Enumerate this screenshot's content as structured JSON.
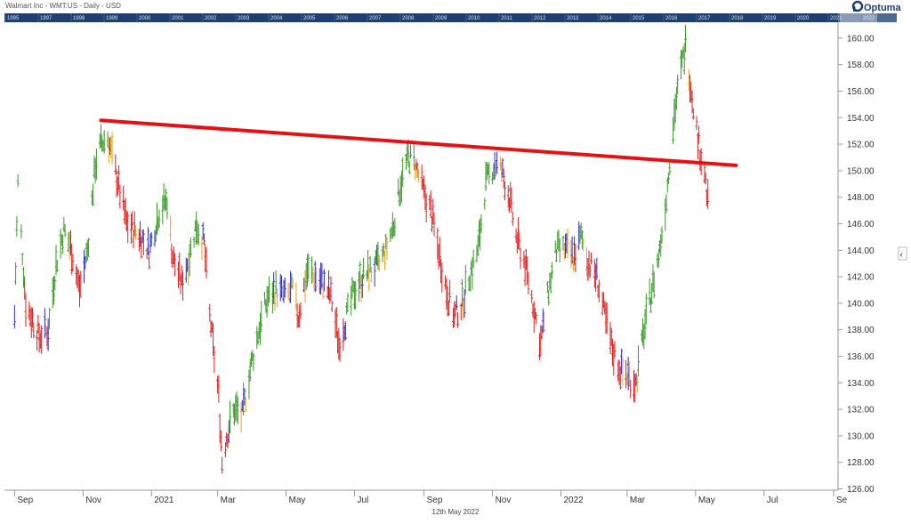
{
  "header": {
    "title": "Walmart Inc - WMT:US - Daily - USD",
    "brand": "Optuma",
    "date_label": "12th May 2022"
  },
  "overview_years": [
    "1995",
    "1997",
    "1998",
    "1999",
    "2000",
    "2001",
    "2002",
    "2003",
    "2004",
    "2005",
    "2006",
    "2007",
    "2008",
    "2009",
    "2010",
    "2011",
    "2012",
    "2013",
    "2014",
    "2015",
    "2016",
    "2017",
    "2018",
    "2019",
    "2020",
    "2021",
    "2022"
  ],
  "chart_data": {
    "type": "ohlc",
    "title": "Walmart Inc - WMT:US - Daily - USD",
    "x_tick_labels": [
      "Sep",
      "Nov",
      "2021",
      "Mar",
      "May",
      "Jul",
      "Sep",
      "Nov",
      "2022",
      "Mar",
      "May",
      "Jul",
      "Se"
    ],
    "y_tick_labels": [
      "126.00",
      "128.00",
      "130.00",
      "132.00",
      "134.00",
      "136.00",
      "138.00",
      "140.00",
      "142.00",
      "144.00",
      "146.00",
      "148.00",
      "150.00",
      "152.00",
      "154.00",
      "156.00",
      "158.00",
      "160.00"
    ],
    "ylim": [
      125.9,
      161.2
    ],
    "grid": false,
    "series_colors": {
      "up": "#3a9a2a",
      "down": "#e02020",
      "flat": "#2b2bd6",
      "pullback": "#f2a21e"
    },
    "trendline": {
      "color": "#e81010",
      "from": {
        "date": "2020-11-17",
        "value": 153.8
      },
      "to": {
        "date": "2022-06-06",
        "value": 150.4
      }
    },
    "anchors": [
      {
        "date": "2020-09-01",
        "value": 139
      },
      {
        "date": "2020-09-04",
        "value": 149
      },
      {
        "date": "2020-09-11",
        "value": 140
      },
      {
        "date": "2020-09-23",
        "value": 137.5
      },
      {
        "date": "2020-10-01",
        "value": 138
      },
      {
        "date": "2020-10-08",
        "value": 143
      },
      {
        "date": "2020-10-15",
        "value": 145.5
      },
      {
        "date": "2020-10-22",
        "value": 144
      },
      {
        "date": "2020-10-29",
        "value": 141
      },
      {
        "date": "2020-11-05",
        "value": 144
      },
      {
        "date": "2020-11-12",
        "value": 150.5
      },
      {
        "date": "2020-11-17",
        "value": 152
      },
      {
        "date": "2020-11-23",
        "value": 152.5
      },
      {
        "date": "2020-11-30",
        "value": 150
      },
      {
        "date": "2020-12-10",
        "value": 146
      },
      {
        "date": "2020-12-17",
        "value": 145.5
      },
      {
        "date": "2020-12-23",
        "value": 145
      },
      {
        "date": "2020-12-30",
        "value": 144
      },
      {
        "date": "2021-01-08",
        "value": 147
      },
      {
        "date": "2021-01-15",
        "value": 147.8
      },
      {
        "date": "2021-01-20",
        "value": 143.5
      },
      {
        "date": "2021-01-28",
        "value": 141.5
      },
      {
        "date": "2021-02-05",
        "value": 144
      },
      {
        "date": "2021-02-10",
        "value": 146
      },
      {
        "date": "2021-02-17",
        "value": 144.5
      },
      {
        "date": "2021-02-22",
        "value": 139
      },
      {
        "date": "2021-02-26",
        "value": 136
      },
      {
        "date": "2021-03-02",
        "value": 133
      },
      {
        "date": "2021-03-05",
        "value": 128
      },
      {
        "date": "2021-03-09",
        "value": 130
      },
      {
        "date": "2021-03-16",
        "value": 132
      },
      {
        "date": "2021-03-23",
        "value": 131.5
      },
      {
        "date": "2021-03-30",
        "value": 135
      },
      {
        "date": "2021-04-08",
        "value": 138.5
      },
      {
        "date": "2021-04-15",
        "value": 140.5
      },
      {
        "date": "2021-04-22",
        "value": 141
      },
      {
        "date": "2021-04-30",
        "value": 140.5
      },
      {
        "date": "2021-05-07",
        "value": 141
      },
      {
        "date": "2021-05-12",
        "value": 139
      },
      {
        "date": "2021-05-20",
        "value": 142.5
      },
      {
        "date": "2021-05-27",
        "value": 142
      },
      {
        "date": "2021-06-03",
        "value": 141.5
      },
      {
        "date": "2021-06-10",
        "value": 140.5
      },
      {
        "date": "2021-06-17",
        "value": 137
      },
      {
        "date": "2021-06-24",
        "value": 139
      },
      {
        "date": "2021-07-01",
        "value": 141
      },
      {
        "date": "2021-07-09",
        "value": 142
      },
      {
        "date": "2021-07-16",
        "value": 142.5
      },
      {
        "date": "2021-07-23",
        "value": 143
      },
      {
        "date": "2021-07-29",
        "value": 144
      },
      {
        "date": "2021-08-05",
        "value": 146
      },
      {
        "date": "2021-08-11",
        "value": 149
      },
      {
        "date": "2021-08-18",
        "value": 151
      },
      {
        "date": "2021-08-24",
        "value": 150.5
      },
      {
        "date": "2021-08-31",
        "value": 148.5
      },
      {
        "date": "2021-09-07",
        "value": 147
      },
      {
        "date": "2021-09-14",
        "value": 144
      },
      {
        "date": "2021-09-21",
        "value": 141
      },
      {
        "date": "2021-09-28",
        "value": 139
      },
      {
        "date": "2021-10-05",
        "value": 140
      },
      {
        "date": "2021-10-11",
        "value": 142
      },
      {
        "date": "2021-10-19",
        "value": 144
      },
      {
        "date": "2021-10-26",
        "value": 149
      },
      {
        "date": "2021-11-03",
        "value": 150.5
      },
      {
        "date": "2021-11-09",
        "value": 150
      },
      {
        "date": "2021-11-16",
        "value": 148
      },
      {
        "date": "2021-11-22",
        "value": 145
      },
      {
        "date": "2021-11-30",
        "value": 143
      },
      {
        "date": "2021-12-07",
        "value": 140
      },
      {
        "date": "2021-12-14",
        "value": 137
      },
      {
        "date": "2021-12-21",
        "value": 141
      },
      {
        "date": "2021-12-28",
        "value": 144
      },
      {
        "date": "2022-01-05",
        "value": 144
      },
      {
        "date": "2022-01-12",
        "value": 143.5
      },
      {
        "date": "2022-01-19",
        "value": 145
      },
      {
        "date": "2022-01-26",
        "value": 143
      },
      {
        "date": "2022-02-02",
        "value": 142
      },
      {
        "date": "2022-02-09",
        "value": 139
      },
      {
        "date": "2022-02-16",
        "value": 136.5
      },
      {
        "date": "2022-02-23",
        "value": 135
      },
      {
        "date": "2022-03-02",
        "value": 134.5
      },
      {
        "date": "2022-03-09",
        "value": 134
      },
      {
        "date": "2022-03-16",
        "value": 138
      },
      {
        "date": "2022-03-23",
        "value": 141
      },
      {
        "date": "2022-03-30",
        "value": 144
      },
      {
        "date": "2022-04-05",
        "value": 148
      },
      {
        "date": "2022-04-08",
        "value": 151
      },
      {
        "date": "2022-04-13",
        "value": 155
      },
      {
        "date": "2022-04-19",
        "value": 158
      },
      {
        "date": "2022-04-22",
        "value": 159.5
      },
      {
        "date": "2022-04-26",
        "value": 157
      },
      {
        "date": "2022-04-29",
        "value": 155
      },
      {
        "date": "2022-05-04",
        "value": 152
      },
      {
        "date": "2022-05-09",
        "value": 150
      },
      {
        "date": "2022-05-12",
        "value": 147.5
      }
    ]
  }
}
